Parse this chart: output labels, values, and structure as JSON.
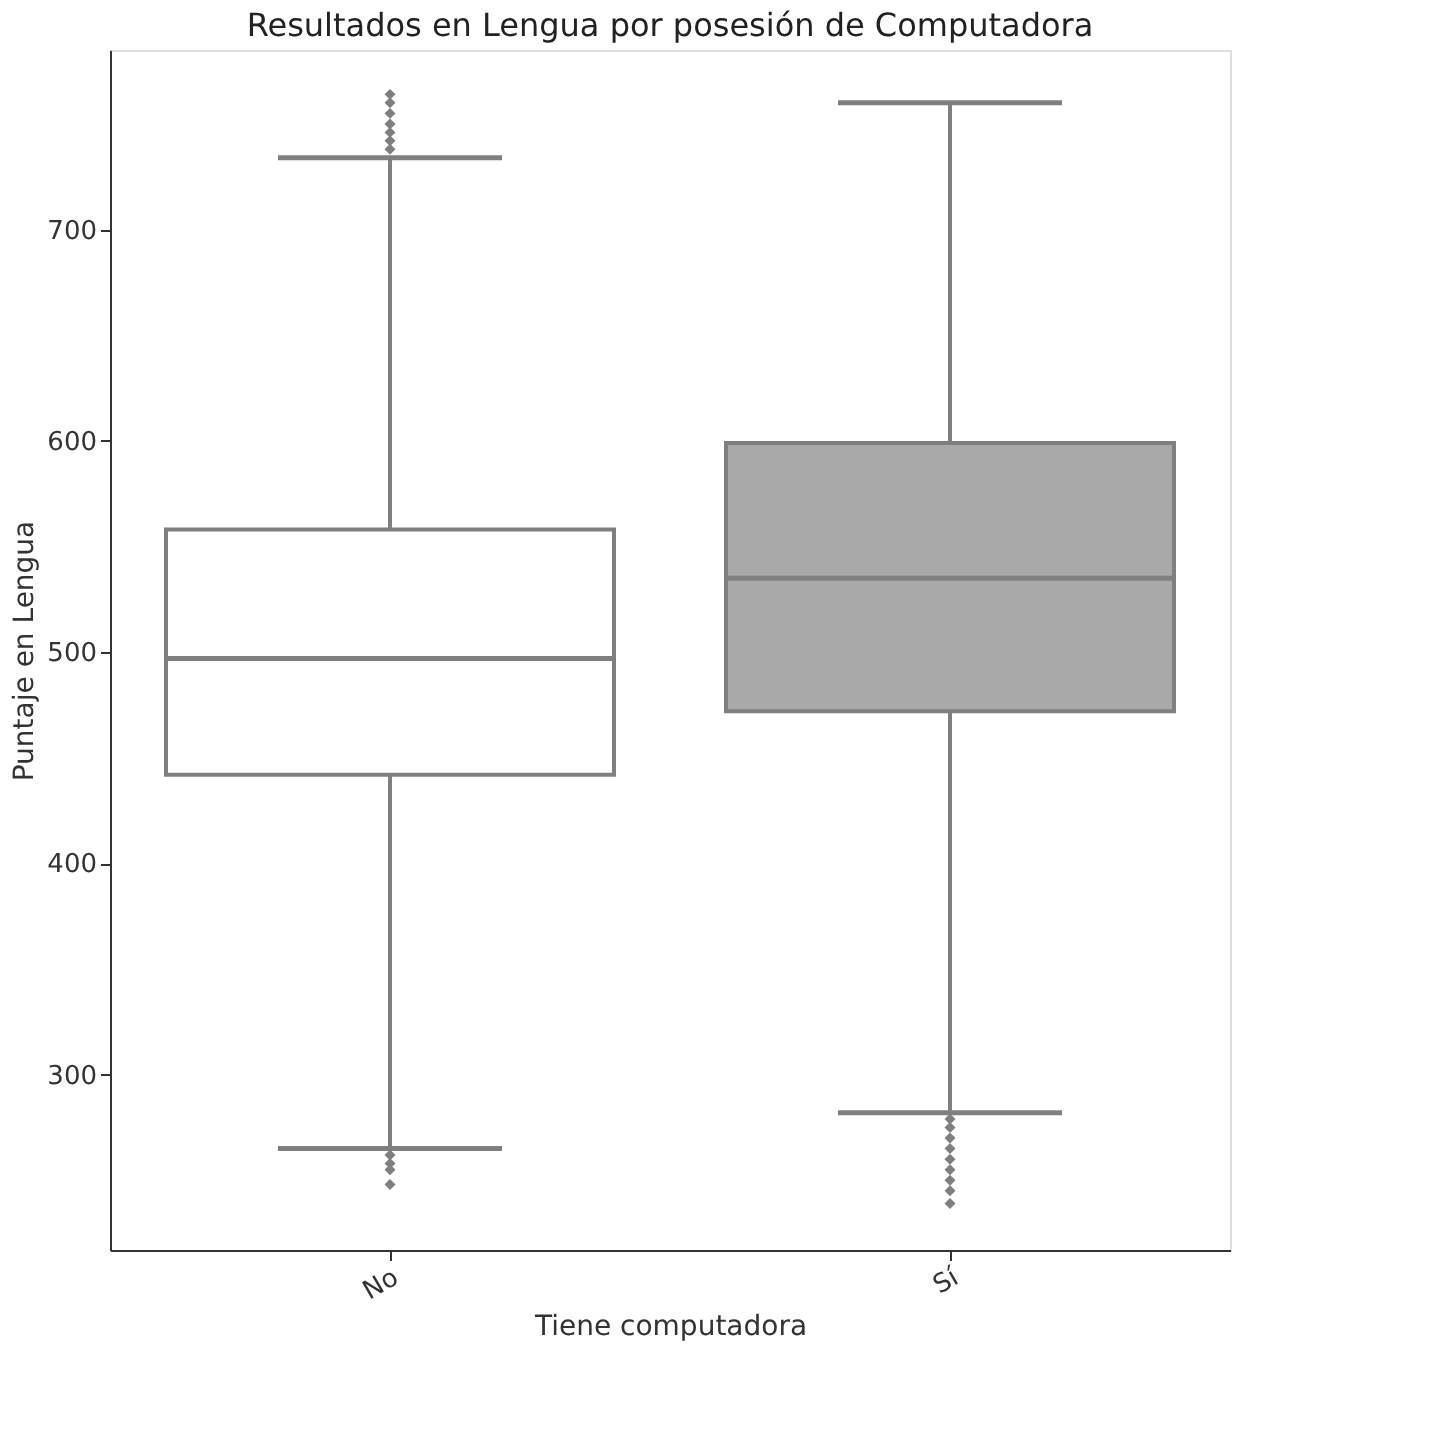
{
  "chart_data": {
    "type": "box",
    "title": "Resultados en Lengua por posesión de Computadora",
    "xlabel": "Tiene computadora",
    "ylabel": "Puntaje en Lengua",
    "categories": [
      "No",
      "Sí"
    ],
    "boxes": [
      {
        "low": 265,
        "q1": 442,
        "median": 497,
        "q3": 558,
        "high": 734,
        "outliers": [
          738,
          742,
          746,
          750,
          755,
          760,
          764,
          262,
          258,
          255,
          248
        ]
      },
      {
        "low": 282,
        "q1": 472,
        "median": 535,
        "q3": 599,
        "high": 760,
        "outliers": [
          279,
          275,
          270,
          265,
          260,
          255,
          250,
          245,
          239
        ]
      }
    ],
    "colors": [
      "#ffffff",
      "#a9a9a9"
    ],
    "ylim": [
      217,
      785
    ],
    "yticks": [
      300,
      400,
      500,
      600,
      700
    ],
    "grid": false
  }
}
